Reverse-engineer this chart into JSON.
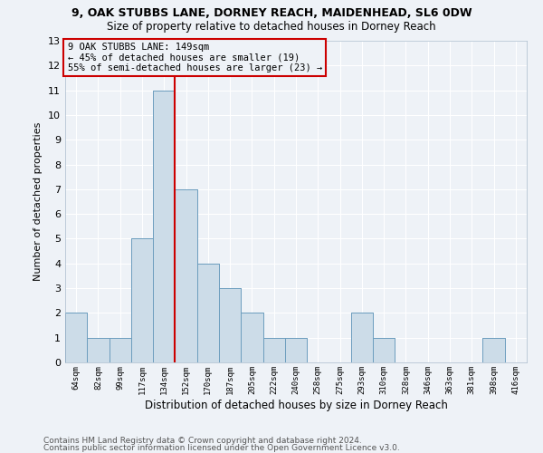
{
  "title1": "9, OAK STUBBS LANE, DORNEY REACH, MAIDENHEAD, SL6 0DW",
  "title2": "Size of property relative to detached houses in Dorney Reach",
  "xlabel": "Distribution of detached houses by size in Dorney Reach",
  "ylabel": "Number of detached properties",
  "categories": [
    "64sqm",
    "82sqm",
    "99sqm",
    "117sqm",
    "134sqm",
    "152sqm",
    "170sqm",
    "187sqm",
    "205sqm",
    "222sqm",
    "240sqm",
    "258sqm",
    "275sqm",
    "293sqm",
    "310sqm",
    "328sqm",
    "346sqm",
    "363sqm",
    "381sqm",
    "398sqm",
    "416sqm"
  ],
  "values": [
    2,
    1,
    1,
    5,
    11,
    7,
    4,
    3,
    2,
    1,
    1,
    0,
    0,
    2,
    1,
    0,
    0,
    0,
    0,
    1,
    0
  ],
  "bar_color": "#ccdce8",
  "bar_edge_color": "#6699bb",
  "property_line_x": 4.5,
  "property_line_label": "9 OAK STUBBS LANE: 149sqm",
  "annotation_line1": "← 45% of detached houses are smaller (19)",
  "annotation_line2": "55% of semi-detached houses are larger (23) →",
  "vline_color": "#cc0000",
  "annotation_box_color": "#cc0000",
  "ylim": [
    0,
    13
  ],
  "yticks": [
    0,
    1,
    2,
    3,
    4,
    5,
    6,
    7,
    8,
    9,
    10,
    11,
    12,
    13
  ],
  "footer1": "Contains HM Land Registry data © Crown copyright and database right 2024.",
  "footer2": "Contains public sector information licensed under the Open Government Licence v3.0.",
  "background_color": "#eef2f7",
  "grid_color": "#ffffff",
  "title1_fontsize": 9,
  "title2_fontsize": 8.5,
  "xlabel_fontsize": 8.5,
  "ylabel_fontsize": 8,
  "annotation_fontsize": 7.5,
  "tick_fontsize": 6.5,
  "footer_fontsize": 6.5
}
